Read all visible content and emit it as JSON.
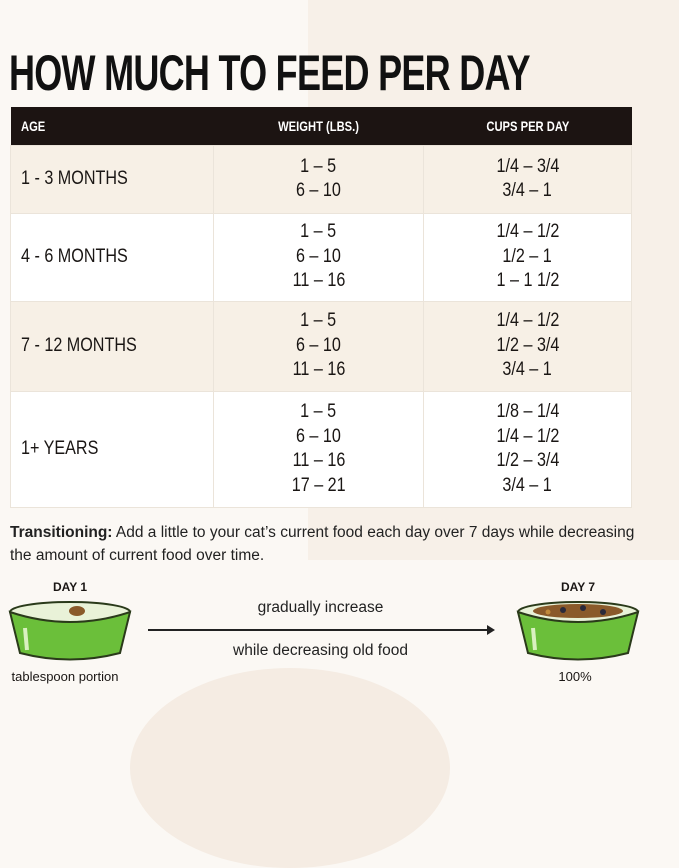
{
  "title": "HOW MUCH TO FEED PER DAY",
  "table": {
    "headers": [
      "AGE",
      "WEIGHT (LBS.)",
      "CUPS PER DAY"
    ],
    "rows": [
      {
        "age": "1 - 3 MONTHS",
        "weights": [
          "1 – 5",
          "6 – 10"
        ],
        "cups": [
          "1/4 – 3/4",
          "3/4 – 1"
        ]
      },
      {
        "age": "4 - 6 MONTHS",
        "weights": [
          "1 – 5",
          "6 – 10",
          "11 – 16"
        ],
        "cups": [
          "1/4 – 1/2",
          "1/2 – 1",
          "1 – 1 1/2"
        ]
      },
      {
        "age": "7 - 12 MONTHS",
        "weights": [
          "1 – 5",
          "6 – 10",
          "11 – 16"
        ],
        "cups": [
          "1/4 – 1/2",
          "1/2 – 3/4",
          "3/4 – 1"
        ]
      },
      {
        "age": "1+ YEARS",
        "weights": [
          "1 – 5",
          "6 – 10",
          "11 – 16",
          "17 – 21"
        ],
        "cups": [
          "1/8 – 1/4",
          "1/4 – 1/2",
          "1/2 – 3/4",
          "3/4 – 1"
        ]
      }
    ]
  },
  "transition": {
    "label": "Transitioning:",
    "text": " Add a little to your cat’s current food each day over 7 days while decreasing the amount of current food over time."
  },
  "diagram": {
    "day1": "DAY 1",
    "day1_caption": "tablespoon portion",
    "day7": "DAY 7",
    "day7_caption": "100%",
    "top_text": "gradually increase",
    "bottom_text": "while decreasing old food"
  },
  "colors": {
    "header_bg": "#1c1412",
    "row_alt": "#f7f0e6",
    "bowl_green": "#6bbf3a"
  }
}
